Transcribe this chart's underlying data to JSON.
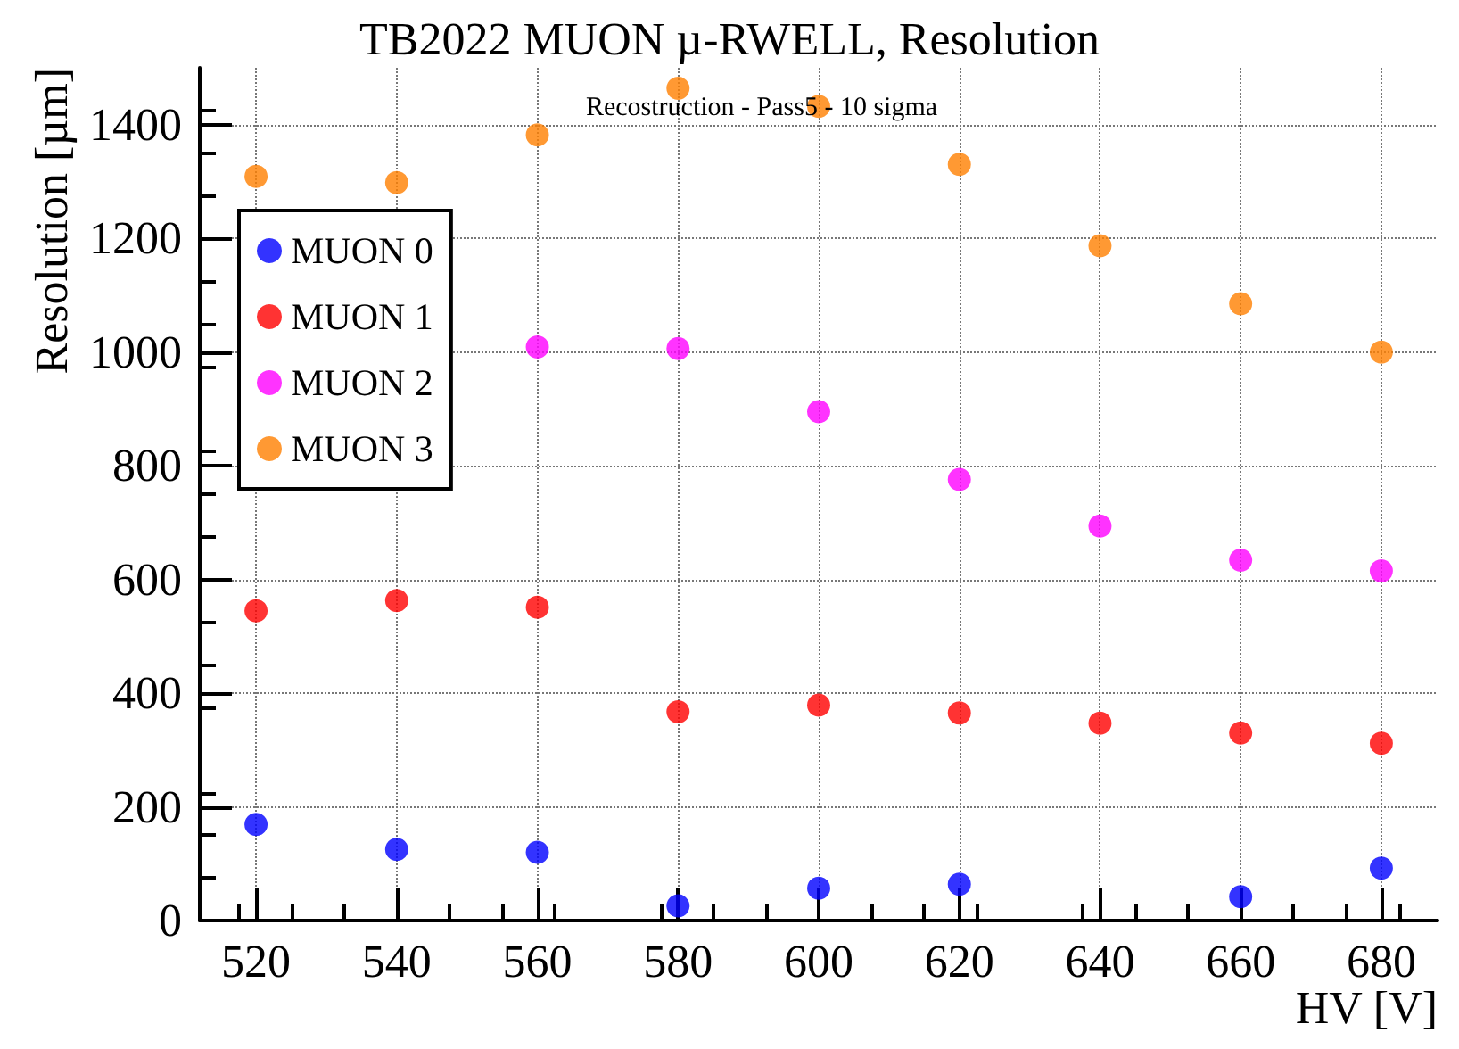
{
  "chart_data": {
    "type": "scatter",
    "title": "TB2022 MUON µ-RWELL, Resolution",
    "subtitle": "Recostruction - Pass5 - 10 sigma",
    "xlabel": "HV [V]",
    "ylabel": "Resolution [µm]",
    "x": [
      520,
      540,
      560,
      580,
      600,
      620,
      640,
      660,
      680
    ],
    "series": [
      {
        "name": "MUON 0",
        "color": "#0000ff",
        "values": [
          169,
          125,
          120,
          26,
          57,
          64,
          null,
          42,
          92
        ]
      },
      {
        "name": "MUON 1",
        "color": "#ff0000",
        "values": [
          545,
          563,
          551,
          367,
          379,
          365,
          347,
          330,
          312
        ]
      },
      {
        "name": "MUON 2",
        "color": "#ff00ff",
        "values": [
          null,
          null,
          1009,
          1006,
          895,
          776,
          694,
          634,
          615
        ]
      },
      {
        "name": "MUON 3",
        "color": "#ff7f00",
        "values": [
          1309,
          1298,
          1382,
          1464,
          1432,
          1330,
          1187,
          1085,
          1000
        ]
      }
    ],
    "xlim": [
      512,
      688
    ],
    "xticks": [
      520,
      540,
      560,
      580,
      600,
      620,
      640,
      660,
      680
    ],
    "ylim": [
      0,
      1500
    ],
    "yticks": [
      0,
      200,
      400,
      600,
      800,
      1000,
      1200,
      1400
    ],
    "grid": true,
    "legend": "top left",
    "marker": "circle"
  }
}
